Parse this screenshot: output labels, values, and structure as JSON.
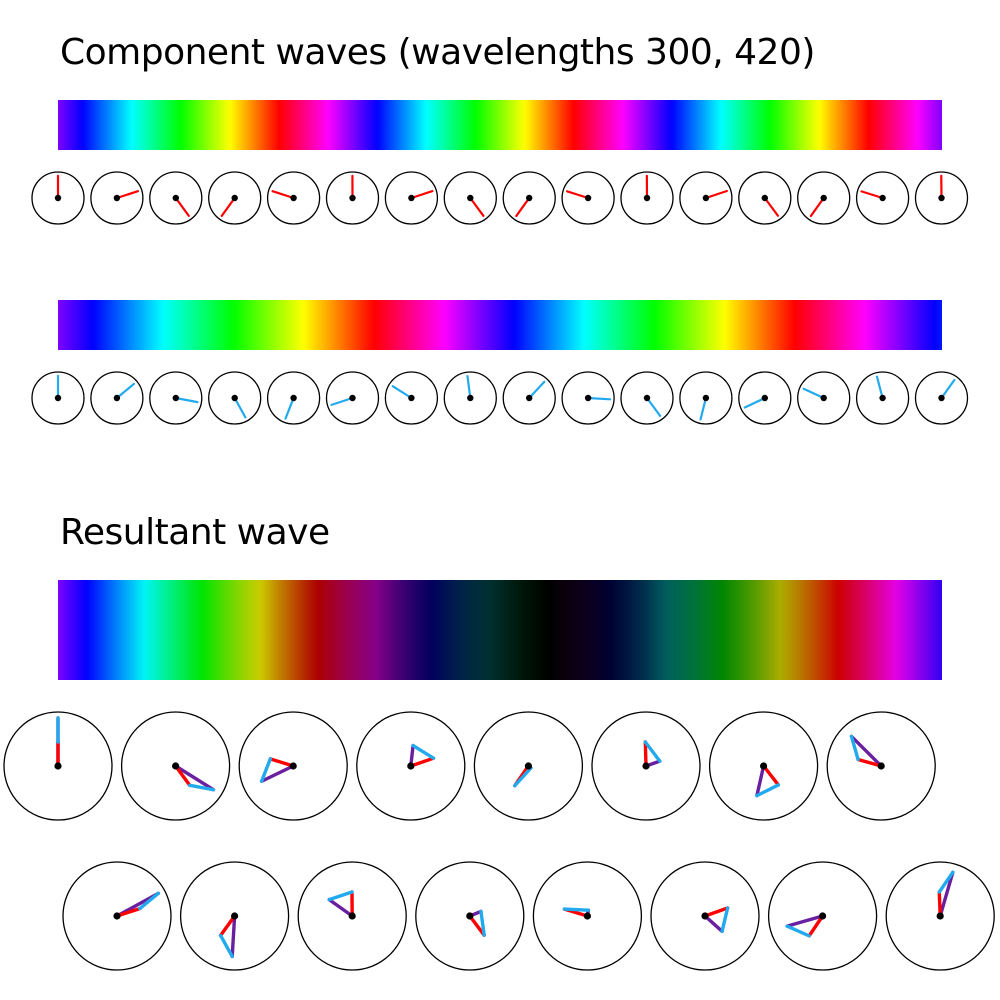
{
  "titles": {
    "components": "Component waves (wavelengths 300, 420)",
    "resultant": "Resultant wave"
  },
  "colors": {
    "wave1_pointer": "#ff0000",
    "wave2_pointer": "#22aaee",
    "resultant_pointer": "#6a1fa0",
    "dial_outline": "#000000",
    "pivot": "#000000"
  },
  "waves": [
    {
      "id": "wave-1",
      "wavelength": 300,
      "periods_shown": 3,
      "phase_start_deg": 0,
      "pointer_color": "#ff0000"
    },
    {
      "id": "wave-2",
      "wavelength": 420,
      "periods_shown": 2.1,
      "phase_start_deg": 0,
      "pointer_color": "#22aaee"
    }
  ],
  "dials": {
    "component_count": 16,
    "resultant_count": 16,
    "resultant_rows": 2
  }
}
